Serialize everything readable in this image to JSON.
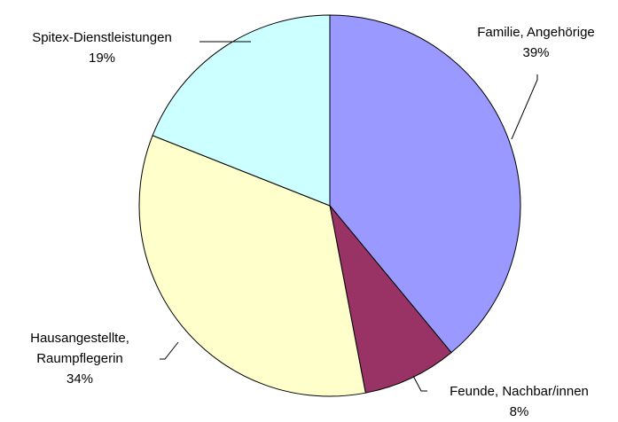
{
  "chart_data": {
    "type": "pie",
    "categories": [
      "Familie, Angehörige",
      "Feunde, Nachbar/innen",
      "Hausangestellte, Raumpflegerin",
      "Spitex-Dienstleistungen"
    ],
    "values": [
      39,
      8,
      34,
      19
    ],
    "value_labels": [
      "39%",
      "8%",
      "34%",
      "19%"
    ],
    "colors": [
      "#9999ff",
      "#993366",
      "#ffffcc",
      "#ccffff"
    ]
  }
}
